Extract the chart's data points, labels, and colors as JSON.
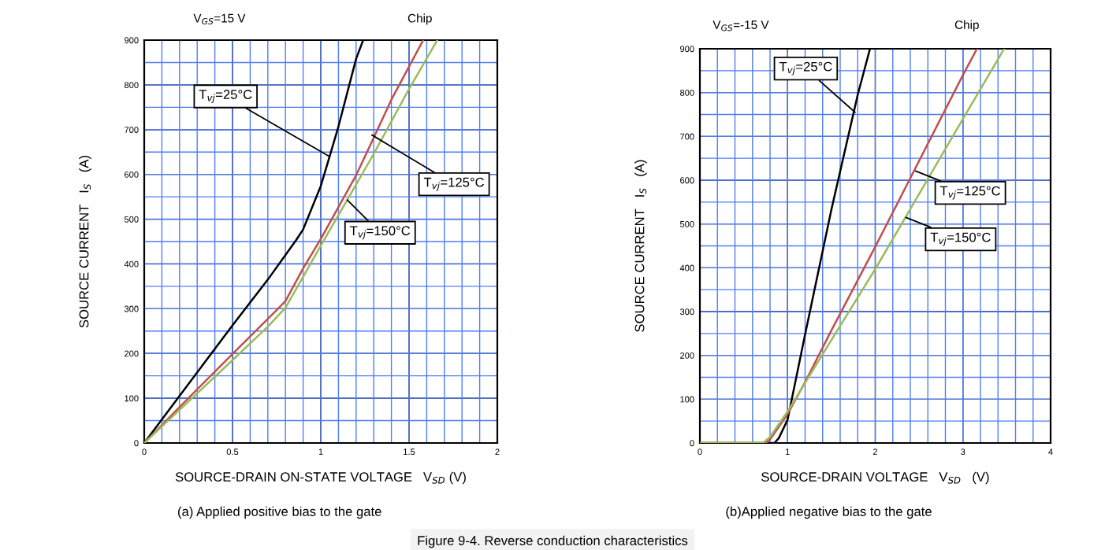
{
  "chart_data": [
    {
      "type": "line",
      "xlabel": "SOURCE-DRAIN ON-STATE VOLTAGE   V$_{SD}$ (V)",
      "ylabel": "SOURCE CURRENT   I$_{S}$   (A)",
      "xlim": [
        0,
        2
      ],
      "ylim": [
        0,
        900
      ],
      "xticks": [
        0,
        0.5,
        1,
        1.5,
        2
      ],
      "yticks": [
        0,
        100,
        200,
        300,
        400,
        500,
        600,
        700,
        800,
        900
      ],
      "grid": true,
      "legend": false,
      "series": [
        {
          "color": "#000000",
          "x": [
            0,
            0.5,
            0.7,
            0.86,
            0.9,
            1.0,
            1.05,
            1.1,
            1.2,
            1.24
          ],
          "values": [
            0,
            263,
            365,
            453,
            477,
            574,
            640,
            707,
            858,
            900
          ]
        },
        {
          "color": "#c0504d",
          "x": [
            0,
            0.25,
            0.5,
            0.75,
            0.8,
            0.9,
            1.0,
            1.2,
            1.3,
            1.4,
            1.58
          ],
          "values": [
            0,
            100,
            199,
            297,
            317,
            390,
            456,
            598,
            682,
            767,
            900
          ]
        },
        {
          "color": "#9bbb59",
          "x": [
            0,
            0.5,
            0.7,
            0.8,
            0.9,
            1.0,
            1.15,
            1.3,
            1.5,
            1.66
          ],
          "values": [
            0,
            185,
            260,
            302,
            371,
            441,
            543,
            646,
            791,
            900
          ]
        }
      ],
      "annotations": [
        "V$_{GS}$=15 V",
        "Chip",
        "(a) Applied positive bias to the gate",
        "Figure 9-4. Reverse conduction characteristics",
        {
          "text": "T$_{vj}$=25°C",
          "x": 1.05,
          "y": 640
        },
        {
          "text": "T$_{vj}$=125°C",
          "x": 1.29,
          "y": 688
        },
        {
          "text": "T$_{vj}$=150°C",
          "x": 1.15,
          "y": 543
        }
      ]
    },
    {
      "type": "line",
      "xlabel": "SOURCE-DRAIN VOLTAGE   V$_{SD}$   (V)",
      "ylabel": "SOURCE CURRENT   I$_{S}$   (A)",
      "xlim": [
        0,
        4
      ],
      "ylim": [
        0,
        900
      ],
      "xticks": [
        0,
        1,
        2,
        3,
        4
      ],
      "yticks": [
        0,
        100,
        200,
        300,
        400,
        500,
        600,
        700,
        800,
        900
      ],
      "grid": true,
      "legend": false,
      "series": [
        {
          "color": "#000000",
          "x": [
            0,
            0.85,
            0.9,
            1.0,
            1.2,
            1.5,
            1.8,
            1.94
          ],
          "values": [
            0,
            0,
            11,
            53,
            248,
            533,
            795,
            900
          ]
        },
        {
          "color": "#c0504d",
          "x": [
            0,
            0.75,
            0.8,
            1.0,
            1.2,
            1.5,
            2.0,
            3.0,
            3.16
          ],
          "values": [
            0,
            0,
            8,
            66,
            139,
            257,
            448,
            840,
            900
          ]
        },
        {
          "color": "#9bbb59",
          "x": [
            0,
            0.72,
            0.8,
            1.0,
            1.5,
            2.0,
            3.0,
            3.47
          ],
          "values": [
            0,
            0,
            14,
            72,
            235,
            397,
            740,
            900
          ]
        }
      ],
      "annotations": [
        "V$_{GS}$=-15 V",
        "Chip",
        "(b)Applied negative bias to the gate",
        {
          "text": "T$_{vj}$=25°C",
          "x": 1.77,
          "y": 755
        },
        {
          "text": "T$_{vj}$=125°C",
          "x": 2.46,
          "y": 621
        },
        {
          "text": "T$_{vj}$=150°C",
          "x": 2.35,
          "y": 515
        }
      ]
    }
  ]
}
